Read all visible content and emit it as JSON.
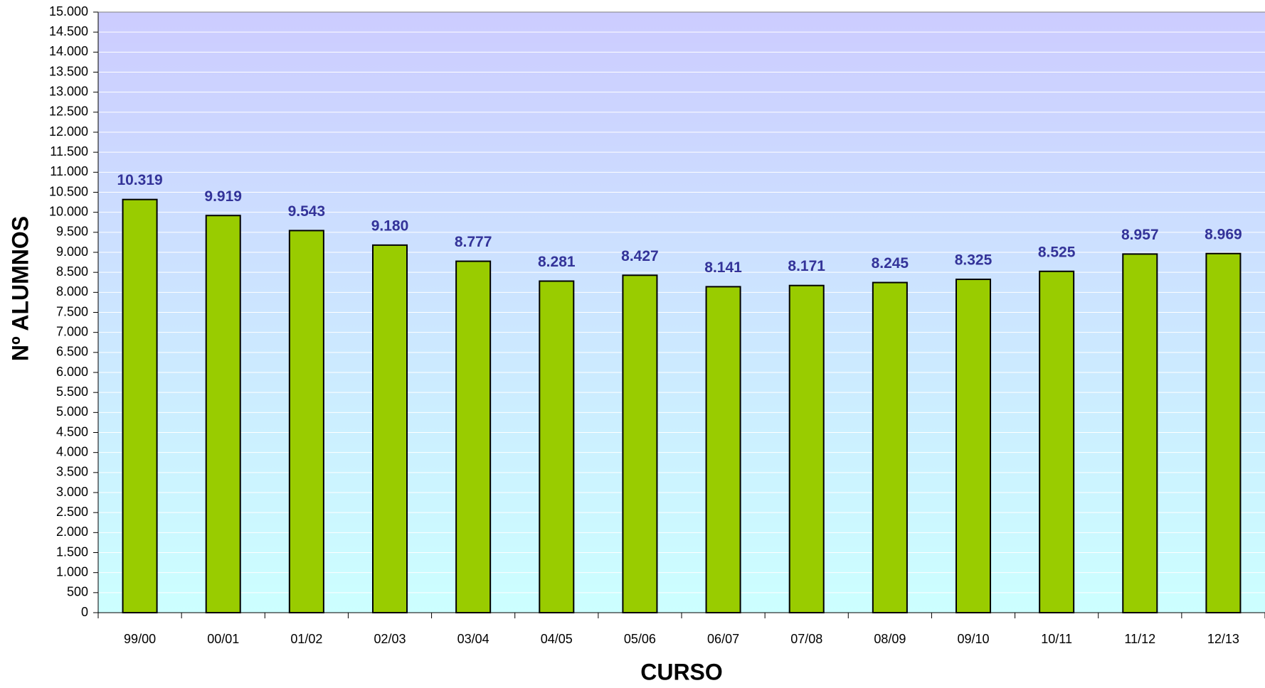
{
  "chart_data": {
    "type": "bar",
    "xlabel": "CURSO",
    "ylabel": "Nº ALUMNOS",
    "categories": [
      "99/00",
      "00/01",
      "01/02",
      "02/03",
      "03/04",
      "04/05",
      "05/06",
      "06/07",
      "07/08",
      "08/09",
      "09/10",
      "10/11",
      "11/12",
      "12/13"
    ],
    "values": [
      10319,
      9919,
      9543,
      9180,
      8777,
      8281,
      8427,
      8141,
      8171,
      8245,
      8325,
      8525,
      8957,
      8969
    ],
    "value_labels": [
      "10.319",
      "9.919",
      "9.543",
      "9.180",
      "8.777",
      "8.281",
      "8.427",
      "8.141",
      "8.171",
      "8.245",
      "8.325",
      "8.525",
      "8.957",
      "8.969"
    ],
    "color": "#99cc00",
    "ylim": [
      0,
      15000
    ],
    "yticks": [
      0,
      500,
      {
        "value": 1000,
        "label": "1.000"
      },
      {
        "value": 1500,
        "label": "1.500"
      },
      {
        "value": 2000,
        "label": "2.000"
      },
      {
        "value": 2500,
        "label": "2.500"
      },
      {
        "value": 3000,
        "label": "3.000"
      },
      {
        "value": 3500,
        "label": "3.500"
      },
      {
        "value": 4000,
        "label": "4.000"
      },
      {
        "value": 4500,
        "label": "4.500"
      },
      {
        "value": 5000,
        "label": "5.000"
      },
      {
        "value": 5500,
        "label": "5.500"
      },
      {
        "value": 6000,
        "label": "6.000"
      },
      {
        "value": 6500,
        "label": "6.500"
      },
      {
        "value": 7000,
        "label": "7.000"
      },
      {
        "value": 7500,
        "label": "7.500"
      },
      {
        "value": 8000,
        "label": "8.000"
      },
      {
        "value": 8500,
        "label": "8.500"
      },
      {
        "value": 9000,
        "label": "9.000"
      },
      {
        "value": 9500,
        "label": "9.500"
      },
      {
        "value": 10000,
        "label": "10.000"
      },
      {
        "value": 10500,
        "label": "10.500"
      },
      {
        "value": 11000,
        "label": "11.000"
      },
      {
        "value": 11500,
        "label": "11.500"
      },
      {
        "value": 12000,
        "label": "12.000"
      },
      {
        "value": 12500,
        "label": "12.500"
      },
      {
        "value": 13000,
        "label": "13.000"
      },
      {
        "value": 13500,
        "label": "13.500"
      },
      {
        "value": 14000,
        "label": "14.000"
      },
      {
        "value": 14500,
        "label": "14.500"
      },
      {
        "value": 15000,
        "label": "15.000"
      }
    ],
    "grid": true
  }
}
